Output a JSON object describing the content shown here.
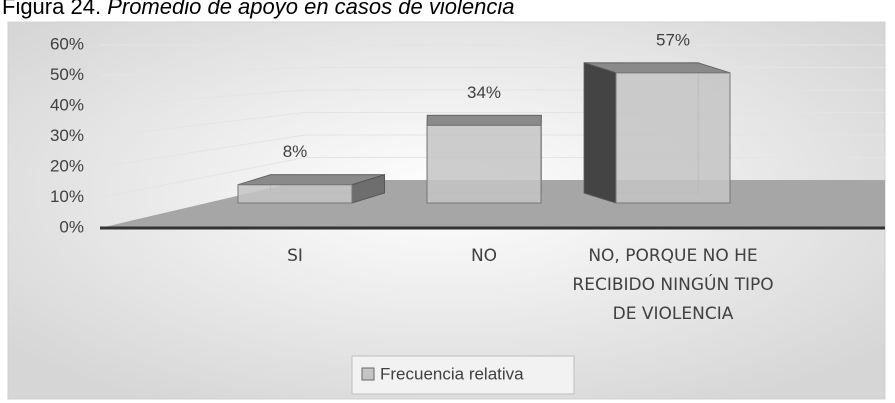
{
  "chart_data": {
    "type": "bar3d",
    "title_prefix": "Figura 24.",
    "title": "Promedio de apoyo en casos de violencia",
    "categories": [
      "SI",
      "NO",
      "NO, PORQUE NO HE RECIBIDO NINGÚN TIPO DE VIOLENCIA"
    ],
    "series": [
      {
        "name": "Frecuencia relativa",
        "color": "#c4c4c4",
        "values": [
          8,
          34,
          57
        ],
        "value_labels": [
          "8%",
          "34%",
          "57%"
        ]
      }
    ],
    "ylim": [
      0,
      60
    ],
    "yticks": [
      {
        "value": 0,
        "label": "0%"
      },
      {
        "value": 10,
        "label": "10%"
      },
      {
        "value": 20,
        "label": "20%"
      },
      {
        "value": 30,
        "label": "30%"
      },
      {
        "value": 40,
        "label": "40%"
      },
      {
        "value": 50,
        "label": "50%"
      },
      {
        "value": 60,
        "label": "60%"
      }
    ],
    "grid": true,
    "legend": "bottom"
  }
}
